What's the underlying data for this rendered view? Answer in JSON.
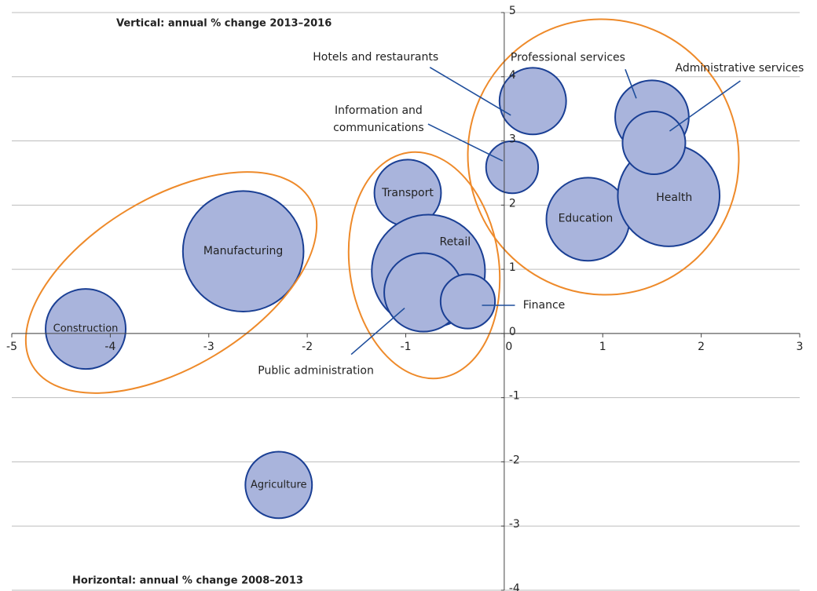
{
  "chart_data": {
    "type": "bubble",
    "ylabel": "Vertical: annual % change 2013–2016",
    "xlabel": "Horizontal: annual % change 2008–2013",
    "xlim": [
      -5,
      3
    ],
    "xticks": [
      -5,
      -4,
      -3,
      -2,
      -1,
      0,
      1,
      2,
      3
    ],
    "ylim": [
      -4,
      5
    ],
    "yticks": [
      -4,
      -3,
      -2,
      -1,
      0,
      1,
      2,
      3,
      4,
      5
    ],
    "grid": true,
    "color": "#a9b4dc",
    "edgecolor": "#1a3f94",
    "points": [
      {
        "name": "Construction",
        "x": -4.25,
        "y": 0.07,
        "size": 26
      },
      {
        "name": "Manufacturing",
        "x": -2.65,
        "y": 1.28,
        "size": 59
      },
      {
        "name": "Agriculture",
        "x": -2.29,
        "y": -2.36,
        "size": 18
      },
      {
        "name": "Transport",
        "x": -0.98,
        "y": 2.19,
        "size": 18
      },
      {
        "name": "Retail",
        "x": -0.77,
        "y": 0.97,
        "size": 52
      },
      {
        "name": "Public administration",
        "x": -0.82,
        "y": 0.64,
        "size": 25
      },
      {
        "name": "Finance",
        "x": -0.37,
        "y": 0.5,
        "size": 12
      },
      {
        "name": "Information and communications",
        "x": 0.08,
        "y": 2.59,
        "size": 11
      },
      {
        "name": "Hotels and restaurants",
        "x": 0.29,
        "y": 3.62,
        "size": 18
      },
      {
        "name": "Education",
        "x": 0.85,
        "y": 1.78,
        "size": 28
      },
      {
        "name": "Health",
        "x": 1.67,
        "y": 2.15,
        "size": 42
      },
      {
        "name": "Professional services",
        "x": 1.5,
        "y": 3.37,
        "size": 22
      },
      {
        "name": "Administrative services",
        "x": 1.52,
        "y": 2.97,
        "size": 16
      }
    ]
  }
}
